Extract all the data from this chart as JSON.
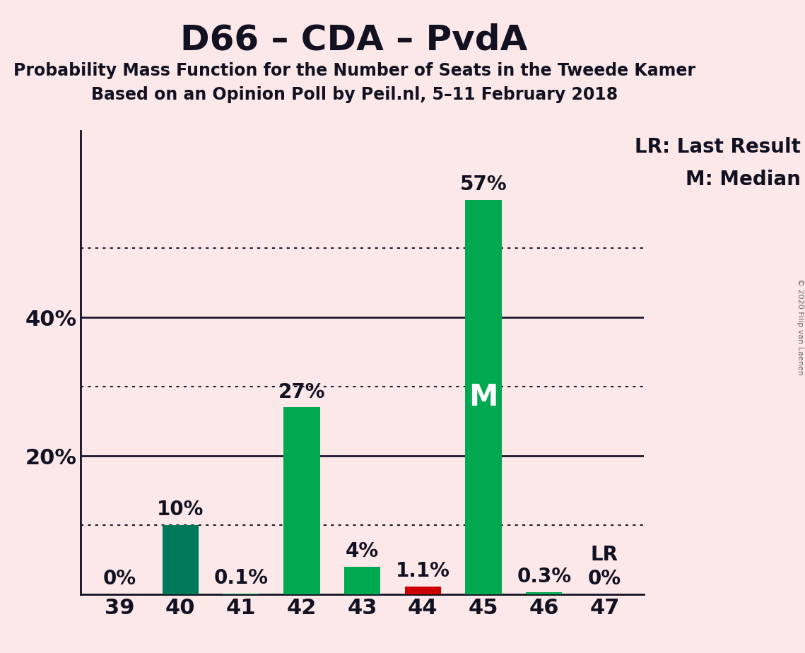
{
  "title": "D66 – CDA – PvdA",
  "subtitle1": "Probability Mass Function for the Number of Seats in the Tweede Kamer",
  "subtitle2": "Based on an Opinion Poll by Peil.nl, 5–11 February 2018",
  "categories": [
    39,
    40,
    41,
    42,
    43,
    44,
    45,
    46,
    47
  ],
  "values": [
    0.0,
    10.0,
    0.1,
    27.0,
    4.0,
    1.1,
    57.0,
    0.3,
    0.0
  ],
  "bar_colors": [
    "#00a850",
    "#00785a",
    "#00a850",
    "#00a850",
    "#00a850",
    "#cc0000",
    "#00a850",
    "#00a850",
    "#00a850"
  ],
  "bar_labels": [
    "0%",
    "10%",
    "0.1%",
    "27%",
    "4%",
    "1.1%",
    "57%",
    "0.3%",
    "0%"
  ],
  "median_bar_idx": 6,
  "lr_bar_idx": 8,
  "lr_label": "LR",
  "median_label": "M",
  "background_color": "#fce8e8",
  "grid_color": "#1a1a2e",
  "dotted_yticks": [
    10,
    30,
    50
  ],
  "solid_yticks": [
    20,
    40
  ],
  "ylim": [
    0,
    67
  ],
  "ytick_vals": [
    20,
    40
  ],
  "ytick_labels": [
    "20%",
    "40%"
  ],
  "legend_text1": "LR: Last Result",
  "legend_text2": "M: Median",
  "copyright_text": "© 2020 Filip van Laenen",
  "title_fontsize": 36,
  "subtitle_fontsize": 17,
  "axis_tick_fontsize": 22,
  "bar_label_fontsize": 20,
  "legend_fontsize": 20,
  "median_label_fontsize": 30
}
